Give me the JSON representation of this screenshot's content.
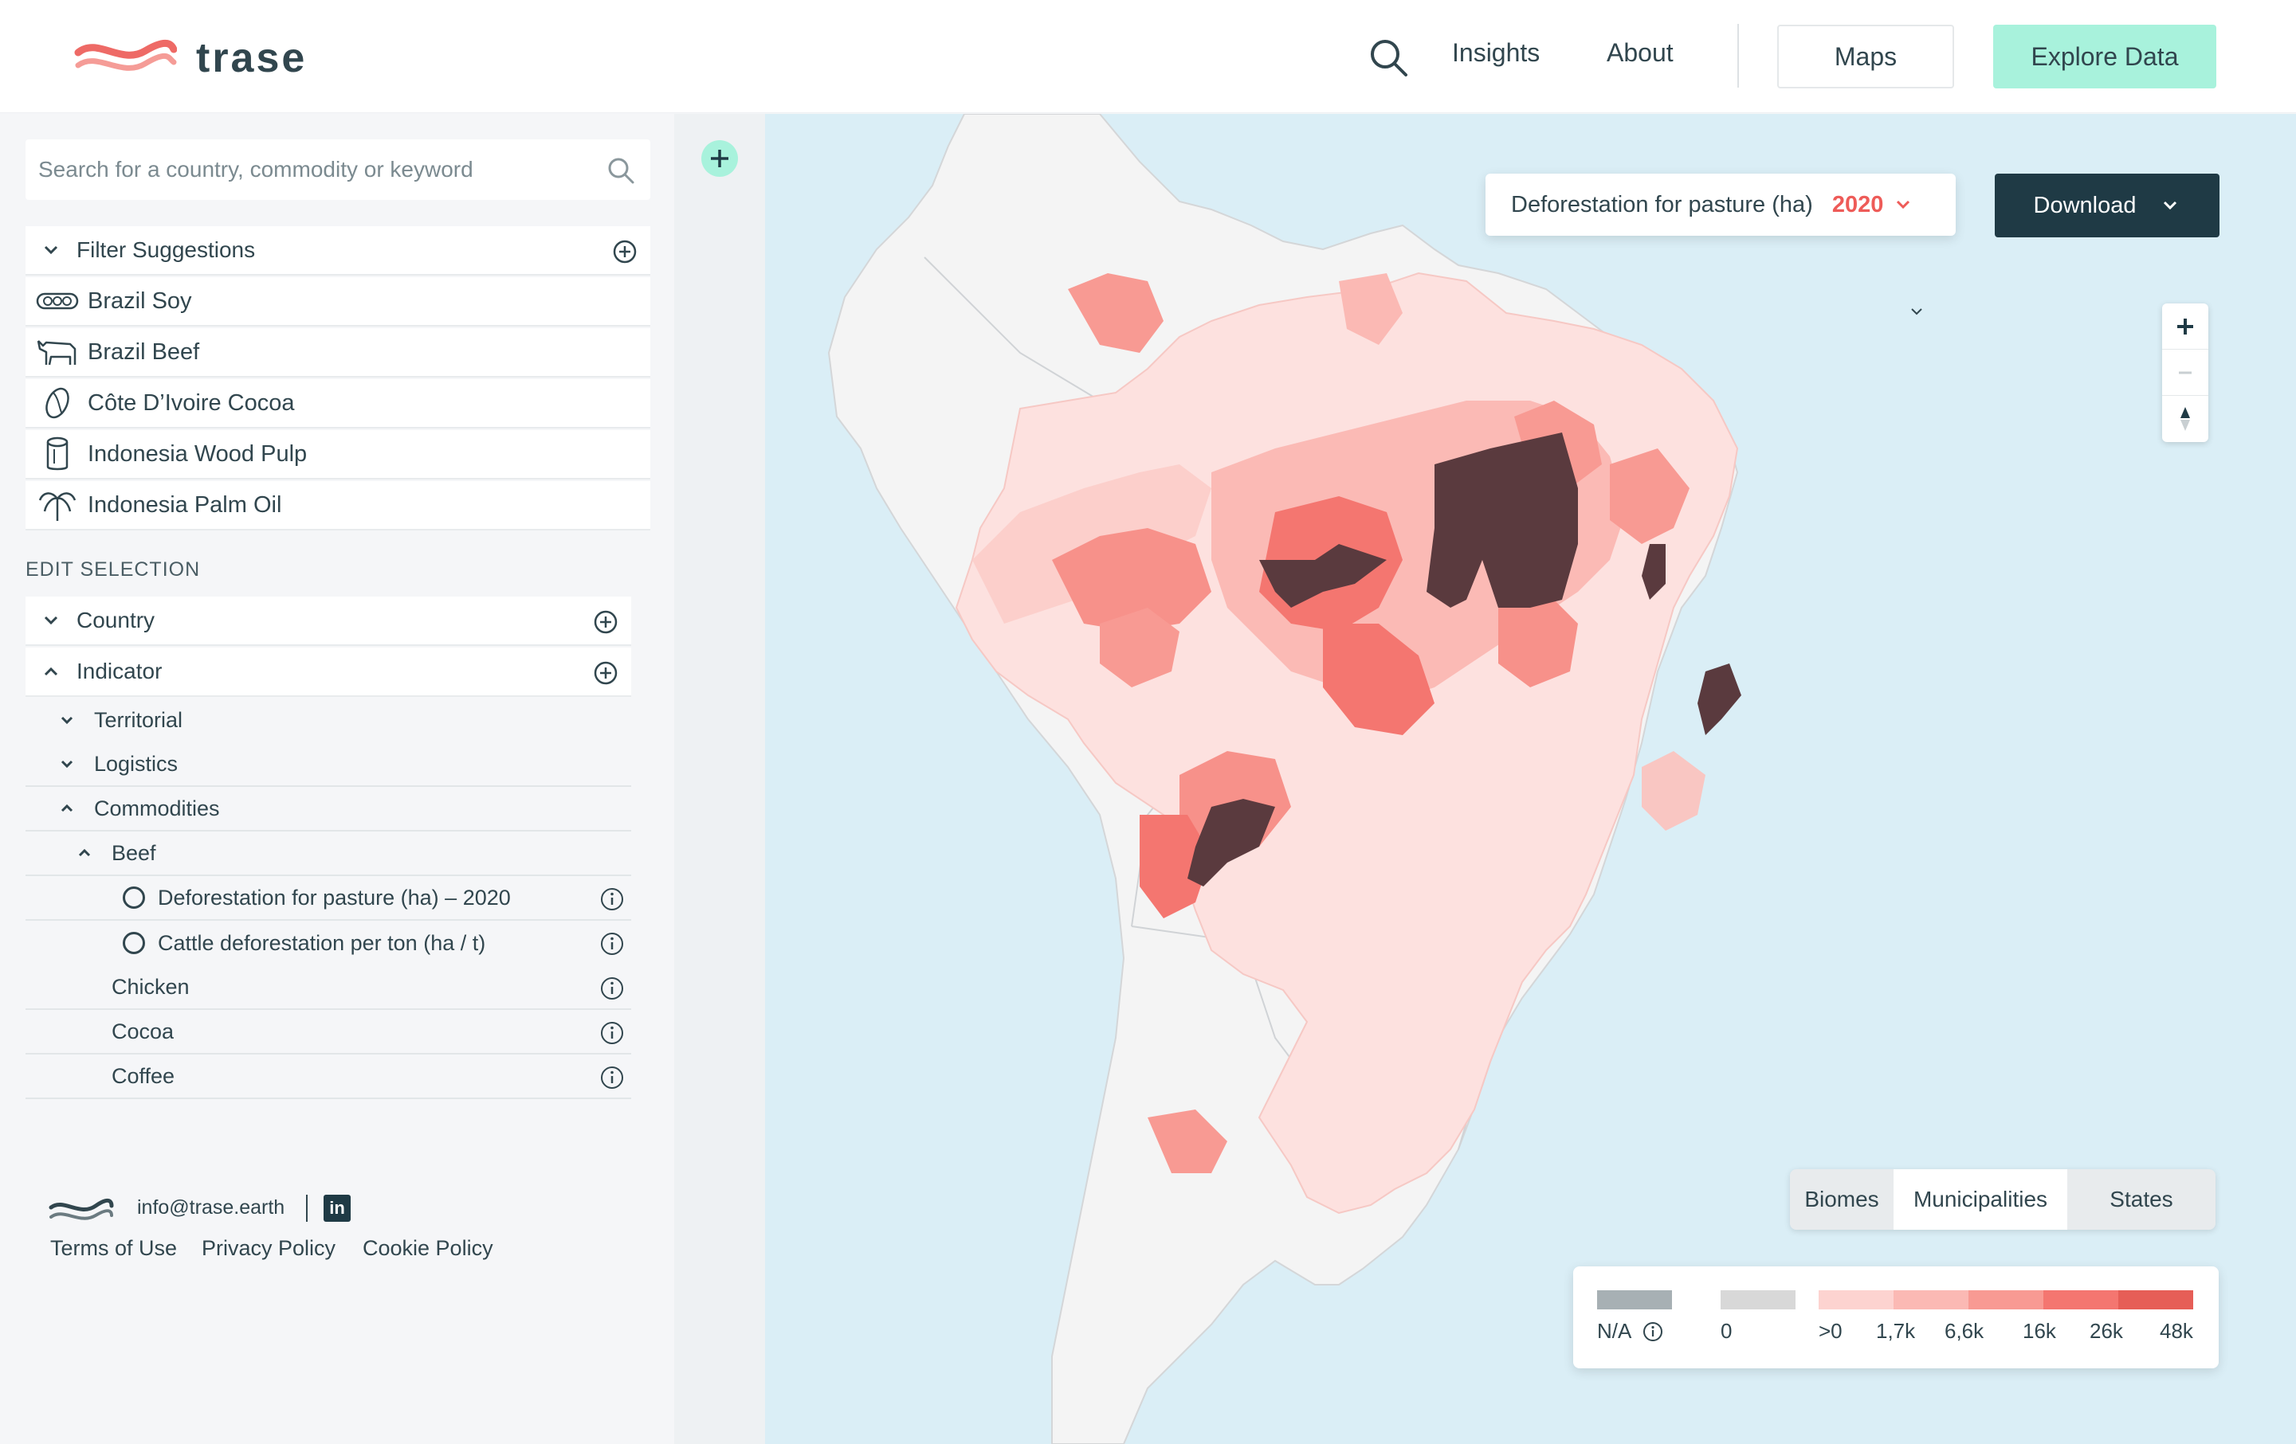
{
  "header": {
    "logo_text": "trase",
    "nav": {
      "insights": "Insights",
      "about": "About"
    },
    "maps_label": "Maps",
    "explore_label": "Explore Data",
    "accent_color": "#a8f2dc"
  },
  "sidebar": {
    "search_placeholder": "Search for a country, commodity or keyword",
    "filter_suggestions_label": "Filter Suggestions",
    "suggestions": [
      {
        "label": "Brazil Soy",
        "icon": "soy-icon"
      },
      {
        "label": "Brazil Beef",
        "icon": "cow-icon"
      },
      {
        "label": "Côte D’Ivoire Cocoa",
        "icon": "cocoa-icon"
      },
      {
        "label": "Indonesia Wood Pulp",
        "icon": "wood-log-icon"
      },
      {
        "label": "Indonesia Palm Oil",
        "icon": "palm-tree-icon"
      }
    ],
    "edit_selection_title": "EDIT SELECTION",
    "country_label": "Country",
    "indicator_label": "Indicator",
    "tree": {
      "territorial": "Territorial",
      "logistics": "Logistics",
      "commodities": "Commodities",
      "beef": "Beef",
      "beef_items": [
        "Deforestation for pasture (ha) – 2020",
        "Cattle deforestation per ton (ha / t)"
      ],
      "chicken": "Chicken",
      "cocoa": "Cocoa",
      "coffee": "Coffee"
    },
    "footer": {
      "email": "info@trase.earth",
      "linkedin": "in",
      "links": [
        "Terms of Use",
        "Privacy Policy",
        "Cookie Policy"
      ]
    }
  },
  "map": {
    "indicator_label": "Deforestation for pasture (ha)",
    "indicator_year": "2020",
    "download_label": "Download",
    "tabs": [
      "Biomes",
      "Municipalities",
      "States"
    ],
    "active_tab": "Municipalities",
    "legend": {
      "na_label": "N/A",
      "labels": [
        "0",
        ">0",
        "1,7k",
        "6,6k",
        "16k",
        "26k",
        "48k"
      ],
      "colors": {
        "na": "#a7b0b4",
        "zero": "#d8d8d8",
        "bins": [
          "#fdd3d0",
          "#fbb9b4",
          "#f89a93",
          "#f47670",
          "#e65e57"
        ],
        "max": "#5a3a3e"
      }
    }
  }
}
